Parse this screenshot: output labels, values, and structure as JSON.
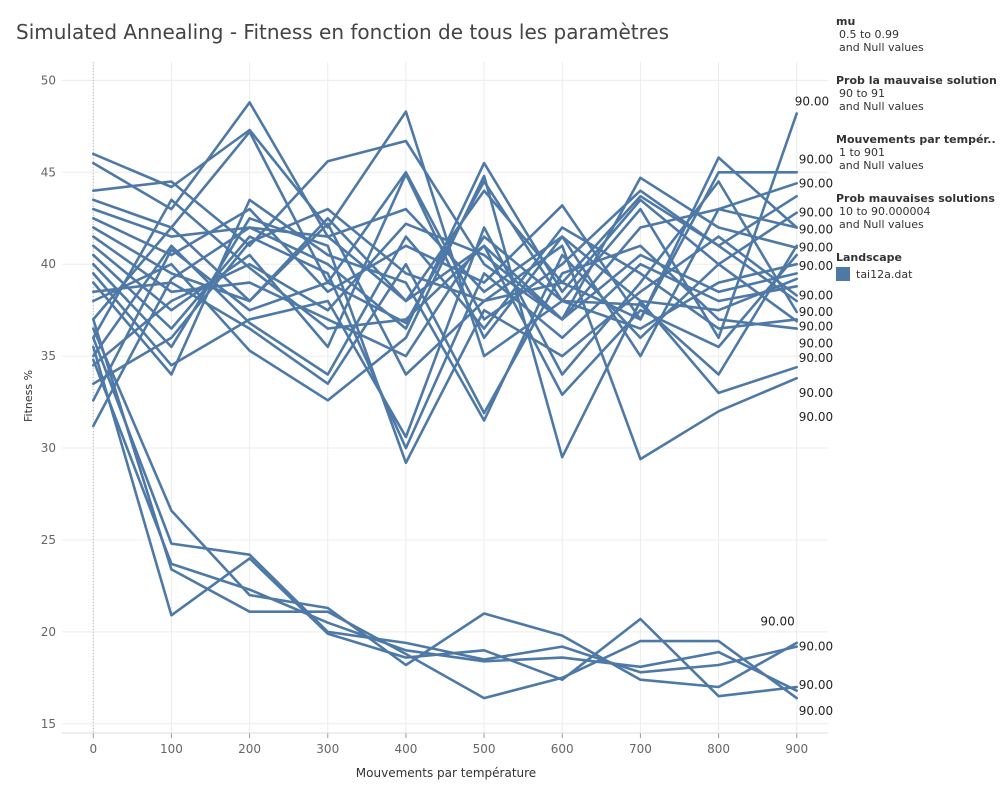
{
  "colors": {
    "series": "#4e79a7",
    "grid": "#ececec",
    "axis": "#999999"
  },
  "chart_data": {
    "type": "line",
    "title": "Simulated Annealing - Fitness en fonction de tous les paramètres",
    "xlabel": "Mouvements par température",
    "ylabel": "Fitness %",
    "xlim": [
      -40,
      940
    ],
    "ylim": [
      14.5,
      51
    ],
    "xticks": [
      0,
      100,
      200,
      300,
      400,
      500,
      600,
      700,
      800,
      900
    ],
    "yticks": [
      15,
      20,
      25,
      30,
      35,
      40,
      45,
      50
    ],
    "grid": true,
    "legend_position": "right",
    "x": [
      0,
      100,
      200,
      300,
      400,
      500,
      600,
      700,
      800,
      900
    ],
    "series": [
      {
        "values": [
          46.0,
          44.2,
          47.3,
          42.0,
          48.3,
          35.0,
          38.0,
          43.0,
          36.0,
          48.2
        ],
        "end_label": "90.00"
      },
      {
        "values": [
          45.5,
          43.0,
          48.8,
          41.5,
          38.0,
          44.0,
          39.0,
          37.0,
          45.0,
          45.0
        ],
        "end_label": "90.00"
      },
      {
        "values": [
          44.0,
          44.5,
          41.0,
          45.6,
          46.7,
          40.0,
          37.0,
          42.0,
          43.0,
          44.4
        ],
        "end_label": "90.00"
      },
      {
        "values": [
          43.5,
          42.0,
          47.2,
          39.0,
          45.0,
          37.0,
          40.0,
          44.0,
          41.0,
          43.7
        ],
        "end_label": "90.00"
      },
      {
        "values": [
          43.0,
          41.5,
          42.0,
          40.0,
          36.5,
          45.5,
          38.5,
          43.5,
          40.0,
          42.8
        ],
        "end_label": "90.00"
      },
      {
        "values": [
          42.5,
          40.5,
          43.0,
          38.5,
          41.0,
          39.0,
          43.2,
          37.0,
          45.8,
          42.0
        ],
        "end_label": "90.00"
      },
      {
        "values": [
          42.0,
          39.5,
          38.0,
          42.5,
          38.0,
          41.0,
          37.0,
          44.7,
          42.0,
          40.9
        ],
        "end_label": "90.00"
      },
      {
        "values": [
          41.5,
          38.5,
          39.0,
          37.0,
          35.0,
          41.5,
          38.0,
          36.5,
          39.0,
          40.0
        ],
        "end_label": "90.00"
      },
      {
        "values": [
          41.0,
          37.5,
          40.5,
          35.5,
          44.9,
          36.0,
          41.5,
          38.0,
          37.5,
          39.2
        ],
        "end_label": "90.00"
      },
      {
        "values": [
          40.5,
          36.5,
          41.5,
          39.5,
          30.0,
          39.5,
          36.0,
          40.0,
          38.0,
          38.8
        ],
        "end_label": "90.00"
      },
      {
        "values": [
          40.0,
          35.5,
          42.5,
          41.0,
          29.2,
          37.5,
          35.0,
          38.5,
          41.5,
          38.3
        ],
        "end_label": "90.00"
      },
      {
        "values": [
          39.5,
          34.5,
          37.0,
          38.0,
          30.6,
          42.0,
          34.0,
          39.0,
          44.5,
          37.4
        ],
        "end_label": "90.00"
      },
      {
        "values": [
          39.0,
          34.0,
          43.5,
          40.5,
          39.0,
          31.5,
          40.5,
          36.0,
          40.0,
          36.9
        ],
        "end_label": "90.00"
      },
      {
        "values": [
          38.5,
          39.0,
          36.5,
          33.5,
          40.0,
          31.9,
          39.5,
          41.0,
          37.0,
          36.5
        ],
        "end_label": "90.00"
      },
      {
        "values": [
          38.0,
          40.0,
          35.3,
          32.6,
          36.0,
          44.8,
          29.5,
          38.0,
          33.0,
          34.4
        ],
        "end_label": "90.00"
      },
      {
        "values": [
          37.0,
          42.0,
          38.0,
          42.2,
          34.0,
          38.0,
          41.0,
          29.4,
          32.0,
          33.8
        ],
        "end_label": "90.00"
      },
      {
        "values": [
          36.0,
          43.5,
          39.8,
          36.5,
          37.0,
          41.0,
          32.9,
          37.5,
          35.5,
          40.5
        ]
      },
      {
        "values": [
          35.0,
          41.0,
          36.8,
          34.0,
          41.5,
          36.5,
          42.0,
          39.5,
          36.5,
          37.0
        ]
      },
      {
        "values": [
          34.5,
          38.0,
          40.0,
          37.5,
          42.2,
          40.5,
          37.0,
          40.5,
          38.5,
          39.5
        ]
      },
      {
        "values": [
          33.5,
          36.0,
          41.2,
          43.0,
          39.5,
          38.0,
          39.0,
          43.7,
          41.0,
          38.0
        ]
      },
      {
        "values": [
          32.6,
          40.8,
          37.5,
          39.0,
          36.8,
          44.5,
          38.0,
          37.8,
          34.0,
          41.0
        ]
      },
      {
        "values": [
          31.2,
          39.2,
          42.0,
          41.5,
          43.0,
          38.5,
          41.5,
          35.0,
          43.0,
          42.0
        ]
      },
      {
        "values": [
          36.5,
          26.6,
          22.0,
          21.3,
          18.2,
          21.0,
          19.8,
          17.4,
          17.0,
          19.4
        ],
        "end_label": "90.00"
      },
      {
        "values": [
          36.0,
          24.8,
          24.2,
          20.0,
          19.4,
          18.5,
          19.2,
          17.8,
          18.2,
          19.2
        ],
        "end_label": "90.00"
      },
      {
        "values": [
          35.5,
          20.9,
          24.0,
          19.9,
          18.6,
          19.0,
          17.4,
          20.7,
          16.5,
          17.0
        ],
        "end_label": "90.00"
      },
      {
        "values": [
          37.0,
          23.4,
          21.1,
          21.1,
          18.8,
          16.4,
          17.5,
          19.5,
          19.5,
          16.4
        ],
        "end_label": "90.00"
      },
      {
        "values": [
          34.8,
          23.7,
          22.3,
          20.5,
          19.0,
          18.4,
          18.6,
          18.1,
          18.9,
          16.8
        ]
      }
    ],
    "end_label_rows": [
      {
        "text": "90.00",
        "y": 48.2,
        "side": "above"
      },
      {
        "text": "90.00",
        "y": 45.7,
        "side": "right"
      },
      {
        "text": "90.00",
        "y": 44.4,
        "side": "right"
      },
      {
        "text": "90.00",
        "y": 42.8,
        "side": "right"
      },
      {
        "text": "90.00",
        "y": 41.9,
        "side": "right"
      },
      {
        "text": "90.00",
        "y": 40.9,
        "side": "right"
      },
      {
        "text": "90.00",
        "y": 39.9,
        "side": "right"
      },
      {
        "text": "90.00",
        "y": 38.3,
        "side": "right"
      },
      {
        "text": "90.00",
        "y": 37.4,
        "side": "right"
      },
      {
        "text": "90.00",
        "y": 36.6,
        "side": "right"
      },
      {
        "text": "90.00",
        "y": 35.7,
        "side": "right"
      },
      {
        "text": "90.00",
        "y": 34.9,
        "side": "right"
      },
      {
        "text": "90.00",
        "y": 33.0,
        "side": "right"
      },
      {
        "text": "90.00",
        "y": 31.7,
        "side": "right"
      },
      {
        "text": "90.00",
        "y": 19.9,
        "side": "above"
      },
      {
        "text": "90.00",
        "y": 19.2,
        "side": "right"
      },
      {
        "text": "90.00",
        "y": 17.1,
        "side": "right"
      },
      {
        "text": "90.00",
        "y": 15.7,
        "side": "right"
      }
    ]
  },
  "legend": {
    "filters": [
      {
        "title": "mu",
        "lines": [
          "0.5 to 0.99",
          "and Null values"
        ]
      },
      {
        "title": "Prob la mauvaise solution",
        "lines": [
          "90 to 91",
          "and Null values"
        ]
      },
      {
        "title": "Mouvements par tempér..",
        "lines": [
          "1 to 901",
          "and Null values"
        ]
      },
      {
        "title": "Prob mauvaises solutions",
        "lines": [
          "10 to 90.000004",
          "and Null values"
        ]
      }
    ],
    "landscape": {
      "title": "Landscape",
      "item": "tai12a.dat"
    }
  }
}
